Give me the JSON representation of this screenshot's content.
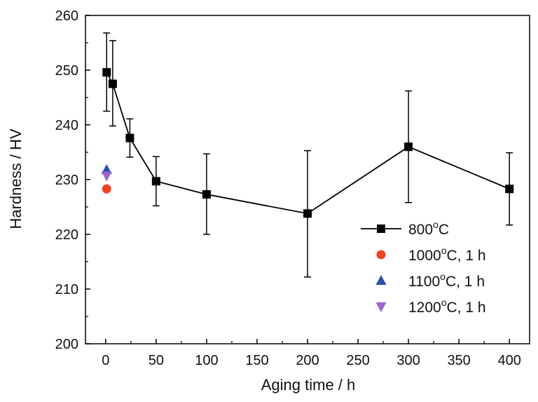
{
  "chart_data": {
    "type": "scatter",
    "xlabel": "Aging time / h",
    "ylabel": "Hardness / HV",
    "xlim": [
      -20,
      420
    ],
    "ylim": [
      200,
      260
    ],
    "xticks": [
      0,
      50,
      100,
      150,
      200,
      250,
      300,
      350,
      400
    ],
    "yticks": [
      200,
      210,
      220,
      230,
      240,
      250,
      260
    ],
    "grid": false,
    "legend_position": "bottom-right",
    "series": [
      {
        "name": "800°C",
        "label_main": "800",
        "label_sup": "o",
        "label_tail": "C",
        "marker": "square",
        "color": "#000000",
        "line": true,
        "x": [
          1,
          7,
          24,
          50,
          100,
          200,
          300,
          400
        ],
        "y": [
          249.6,
          247.5,
          237.6,
          229.7,
          227.3,
          223.8,
          236.0,
          228.3
        ],
        "y_low": [
          242.5,
          239.8,
          234.1,
          225.2,
          220.0,
          212.2,
          225.8,
          221.7
        ],
        "y_high": [
          256.8,
          255.4,
          241.1,
          234.2,
          234.7,
          235.3,
          246.2,
          234.9
        ]
      },
      {
        "name": "1000°C, 1 h",
        "label_main": "1000",
        "label_sup": "o",
        "label_tail": "C, 1 h",
        "marker": "circle",
        "color": "#ee4422",
        "line": false,
        "x": [
          1
        ],
        "y": [
          228.3
        ]
      },
      {
        "name": "1100°C, 1 h",
        "label_main": "1100",
        "label_sup": "o",
        "label_tail": "C, 1 h",
        "marker": "triangle-up",
        "color": "#2b4faa",
        "line": false,
        "x": [
          1
        ],
        "y": [
          231.8
        ]
      },
      {
        "name": "1200°C, 1 h",
        "label_main": "1200",
        "label_sup": "o",
        "label_tail": "C, 1 h",
        "marker": "triangle-down",
        "color": "#9966cc",
        "line": false,
        "x": [
          1
        ],
        "y": [
          230.7
        ]
      }
    ]
  }
}
